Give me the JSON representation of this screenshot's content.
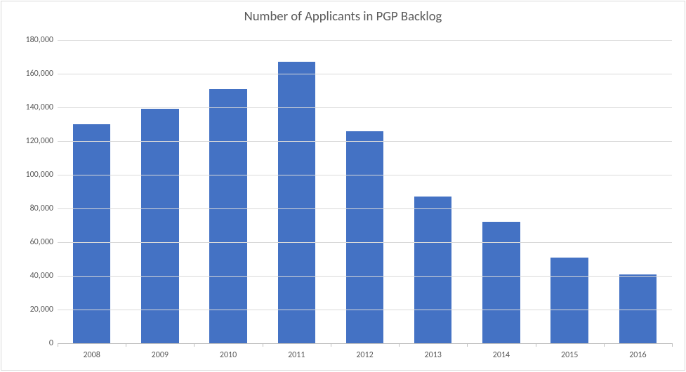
{
  "chart": {
    "type": "bar",
    "title": "Number of Applicants in PGP Backlog",
    "title_fontsize": 18.7,
    "title_color": "#595959",
    "categories": [
      "2008",
      "2009",
      "2010",
      "2011",
      "2012",
      "2013",
      "2014",
      "2015",
      "2016"
    ],
    "values": [
      130000,
      139000,
      151000,
      167000,
      126000,
      87000,
      72000,
      51000,
      41000
    ],
    "bar_color": "#4472c4",
    "ylim": [
      0,
      180000
    ],
    "ytick_step": 20000,
    "y_ticks": [
      "0",
      "20,000",
      "40,000",
      "60,000",
      "80,000",
      "100,000",
      "120,000",
      "140,000",
      "160,000",
      "180,000"
    ],
    "grid_color": "#d9d9d9",
    "baseline_color": "#bfbfbf",
    "background_color": "#ffffff",
    "border_color": "#d9d9d9",
    "axis_label_color": "#595959",
    "axis_label_fontsize": 12,
    "bar_width_ratio": 0.55,
    "font_family": "Calibri"
  }
}
